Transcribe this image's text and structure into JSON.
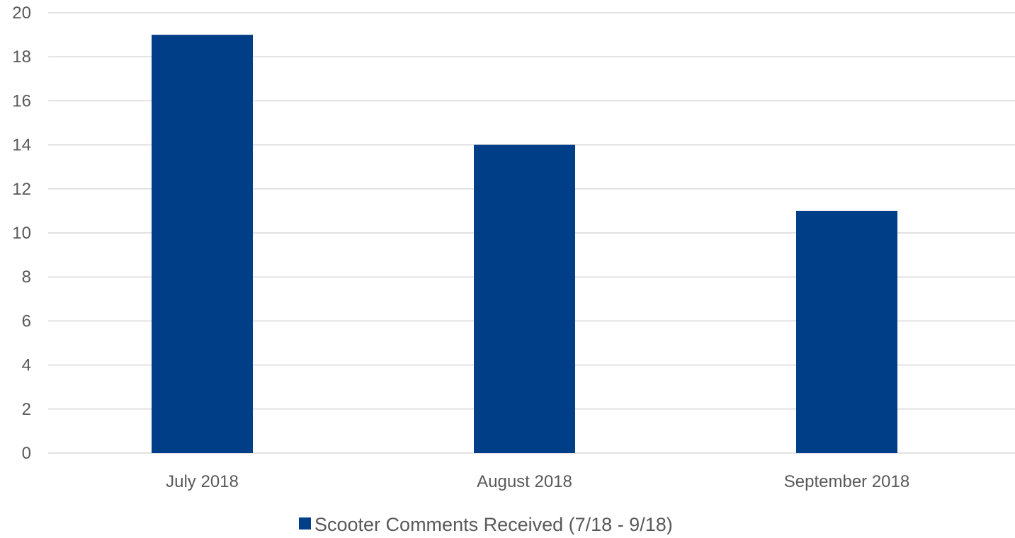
{
  "chart_data": {
    "type": "bar",
    "categories": [
      "July 2018",
      "August 2018",
      "September 2018"
    ],
    "series": [
      {
        "name": "Scooter Comments Received (7/18 - 9/18)",
        "values": [
          19,
          14,
          11
        ],
        "color": "#003F87"
      }
    ],
    "ylim": [
      0,
      20
    ],
    "yticks": [
      0,
      2,
      4,
      6,
      8,
      10,
      12,
      14,
      16,
      18,
      20
    ],
    "title": "",
    "xlabel": "",
    "ylabel": "",
    "grid": true,
    "gridline_color": "#D9D9D9",
    "legend_position": "bottom"
  }
}
